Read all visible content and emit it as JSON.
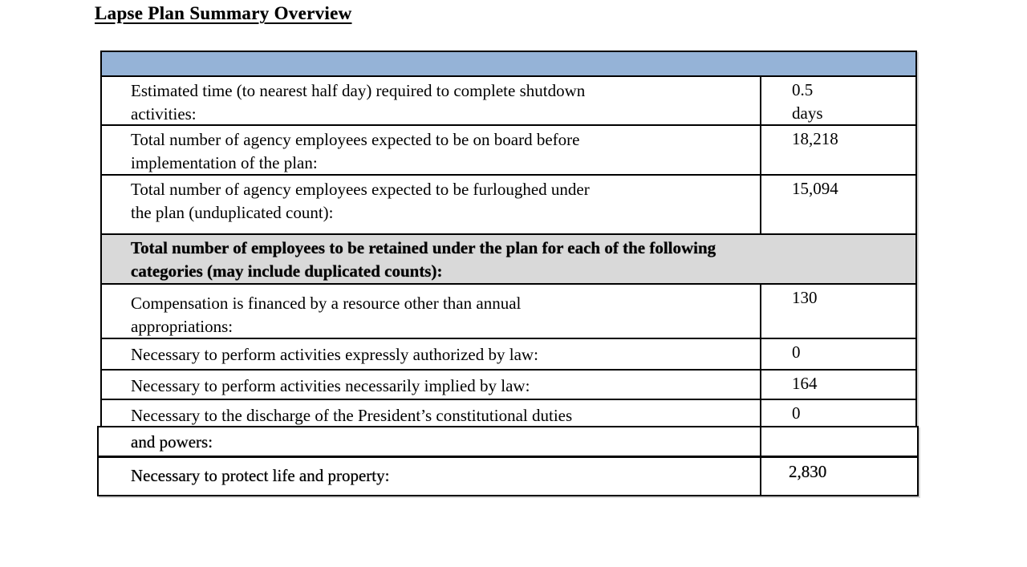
{
  "title": "Lapse Plan Summary Overview",
  "table": {
    "header_bg": "#95B3D7",
    "section_bg": "#D9D9D9",
    "border_color": "#000000",
    "rows": [
      {
        "type": "data",
        "label": "Estimated time (to nearest half day) required to complete shutdown\nactivities:",
        "value": "0.5\ndays"
      },
      {
        "type": "data",
        "label": "Total number of agency employees expected to be on board before\nimplementation of the plan:",
        "value": "18,218"
      },
      {
        "type": "data",
        "label": "Total number of agency employees expected to be furloughed under\nthe plan (unduplicated count):",
        "value": "15,094"
      },
      {
        "type": "section",
        "label": "Total number of employees to be retained under the plan for each of the following\ncategories (may include duplicated counts):"
      },
      {
        "type": "data",
        "label": "Compensation is financed by a resource other than annual\nappropriations:",
        "value": "130"
      },
      {
        "type": "data",
        "label": "Necessary to perform activities expressly authorized by law:",
        "value": "0"
      },
      {
        "type": "data",
        "label": "Necessary to perform activities necessarily implied by law:",
        "value": "164"
      },
      {
        "type": "data",
        "label": "Necessary to the discharge of the President’s constitutional duties",
        "value": "0"
      },
      {
        "type": "data",
        "label": "and powers:",
        "value": ""
      },
      {
        "type": "data",
        "label": "Necessary to protect life and property:",
        "value": "2,830"
      }
    ]
  }
}
